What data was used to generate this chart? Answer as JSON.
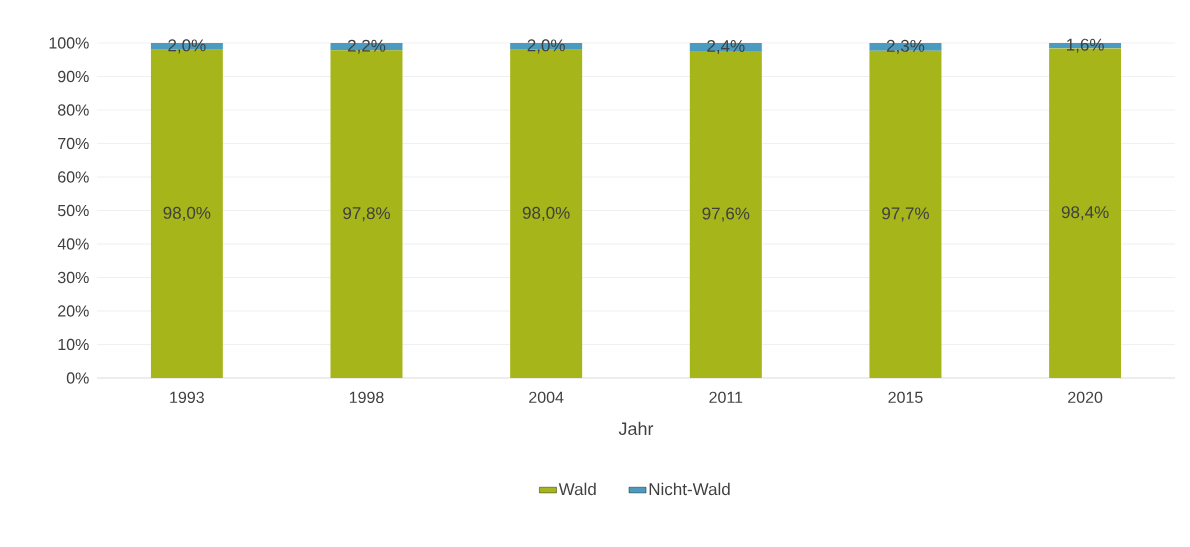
{
  "chart_data": {
    "type": "bar",
    "stacked": true,
    "xlabel": "Jahr",
    "categories": [
      "1993",
      "1998",
      "2004",
      "2011",
      "2015",
      "2020"
    ],
    "series": [
      {
        "name": "Wald",
        "color": "#a5b51a",
        "values": [
          98.0,
          97.8,
          98.0,
          97.6,
          97.7,
          98.4
        ],
        "value_labels": [
          "98,0%",
          "97,8%",
          "98,0%",
          "97,6%",
          "97,7%",
          "98,4%"
        ]
      },
      {
        "name": "Nicht-Wald",
        "color": "#4a9bbf",
        "values": [
          2.0,
          2.2,
          2.0,
          2.4,
          2.3,
          1.6
        ],
        "value_labels": [
          "2,0%",
          "2,2%",
          "2,0%",
          "2,4%",
          "2,3%",
          "1,6%"
        ]
      }
    ],
    "ylim": [
      0,
      100
    ],
    "yticks": [
      {
        "value": 0,
        "label": "0%"
      },
      {
        "value": 10,
        "label": "10%"
      },
      {
        "value": 20,
        "label": "20%"
      },
      {
        "value": 30,
        "label": "30%"
      },
      {
        "value": 40,
        "label": "40%"
      },
      {
        "value": 50,
        "label": "50%"
      },
      {
        "value": 60,
        "label": "60%"
      },
      {
        "value": 70,
        "label": "70%"
      },
      {
        "value": 80,
        "label": "80%"
      },
      {
        "value": 90,
        "label": "90%"
      },
      {
        "value": 100,
        "label": "100%"
      }
    ],
    "grid": "y",
    "legend": "bottom"
  }
}
